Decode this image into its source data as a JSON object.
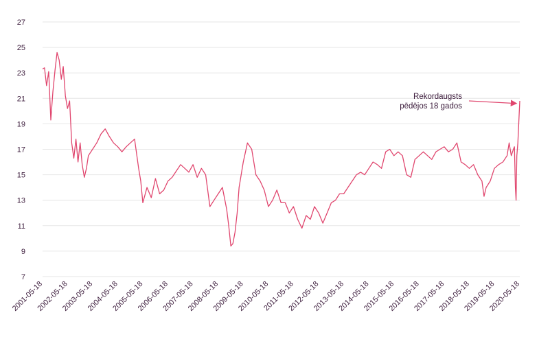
{
  "chart_data": {
    "type": "line",
    "title": "",
    "xlabel": "",
    "ylabel": "",
    "ylim": [
      7,
      27
    ],
    "yticks": [
      7,
      9,
      11,
      13,
      15,
      17,
      19,
      21,
      23,
      25,
      27
    ],
    "grid": "horizontal",
    "line_color": "#e0466e",
    "x_tick_labels": [
      "2001-05-18",
      "2002-05-18",
      "2003-05-18",
      "2004-05-18",
      "2005-05-18",
      "2006-05-18",
      "2007-05-18",
      "2008-05-18",
      "2009-05-18",
      "2010-05-18",
      "2011-05-18",
      "2012-05-18",
      "2013-05-18",
      "2014-05-18",
      "2015-05-18",
      "2016-05-18",
      "2017-05-18",
      "2018-05-18",
      "2019-05-18",
      "2020-05-18"
    ],
    "x_domain": [
      "2001-05-18",
      "2020-05-18"
    ],
    "series": [
      {
        "x": [
          "2001-05-18",
          "2001-06-15",
          "2001-07-15",
          "2001-08-15",
          "2001-09-15",
          "2001-10-15",
          "2001-11-15",
          "2001-12-15",
          "2002-01-15",
          "2002-02-15",
          "2002-03-15",
          "2002-04-15",
          "2002-05-15",
          "2002-06-15",
          "2002-07-15",
          "2002-08-15",
          "2002-09-15",
          "2002-10-15",
          "2002-11-15",
          "2002-12-15",
          "2003-01-15",
          "2003-02-15",
          "2003-03-15",
          "2003-05-15",
          "2003-07-15",
          "2003-09-15",
          "2003-11-15",
          "2004-01-15",
          "2004-03-15",
          "2004-05-15",
          "2004-07-15",
          "2004-09-15",
          "2004-11-15",
          "2005-01-15",
          "2005-03-15",
          "2005-04-15",
          "2005-05-15",
          "2005-07-15",
          "2005-09-15",
          "2005-11-15",
          "2006-01-15",
          "2006-03-15",
          "2006-05-15",
          "2006-07-15",
          "2006-09-15",
          "2006-11-15",
          "2007-01-15",
          "2007-03-15",
          "2007-05-15",
          "2007-07-15",
          "2007-09-15",
          "2007-11-15",
          "2008-01-15",
          "2008-03-15",
          "2008-05-15",
          "2008-07-15",
          "2008-09-15",
          "2008-10-15",
          "2008-11-15",
          "2008-12-15",
          "2009-01-15",
          "2009-02-15",
          "2009-03-15",
          "2009-05-15",
          "2009-07-15",
          "2009-09-15",
          "2009-11-15",
          "2010-01-15",
          "2010-03-15",
          "2010-05-15",
          "2010-07-15",
          "2010-09-15",
          "2010-11-15",
          "2011-01-15",
          "2011-03-15",
          "2011-05-15",
          "2011-07-15",
          "2011-09-15",
          "2011-11-15",
          "2012-01-15",
          "2012-03-15",
          "2012-05-15",
          "2012-07-15",
          "2012-09-15",
          "2012-11-15",
          "2013-01-15",
          "2013-03-15",
          "2013-05-15",
          "2013-07-15",
          "2013-09-15",
          "2013-11-15",
          "2014-01-15",
          "2014-03-15",
          "2014-05-15",
          "2014-07-15",
          "2014-09-15",
          "2014-11-15",
          "2015-01-15",
          "2015-03-15",
          "2015-05-15",
          "2015-07-15",
          "2015-09-15",
          "2015-11-15",
          "2016-01-15",
          "2016-03-15",
          "2016-05-15",
          "2016-07-15",
          "2016-09-15",
          "2016-11-15",
          "2017-01-15",
          "2017-03-15",
          "2017-05-15",
          "2017-07-15",
          "2017-09-15",
          "2017-11-15",
          "2018-01-15",
          "2018-03-15",
          "2018-05-15",
          "2018-07-15",
          "2018-09-15",
          "2018-11-15",
          "2018-12-15",
          "2019-01-15",
          "2019-03-15",
          "2019-05-15",
          "2019-07-15",
          "2019-09-15",
          "2019-11-15",
          "2019-12-15",
          "2020-01-15",
          "2020-02-15",
          "2020-03-01",
          "2020-03-15",
          "2020-03-25",
          "2020-04-05",
          "2020-04-20",
          "2020-05-05",
          "2020-05-18"
        ],
        "y": [
          23.3,
          23.4,
          22.0,
          23.1,
          19.3,
          21.5,
          23.2,
          24.6,
          24.0,
          22.5,
          23.5,
          21.2,
          20.2,
          20.8,
          17.5,
          16.3,
          17.8,
          16.0,
          17.5,
          15.8,
          14.8,
          15.5,
          16.5,
          17.0,
          17.5,
          18.2,
          18.6,
          18.0,
          17.5,
          17.2,
          16.8,
          17.2,
          17.5,
          17.8,
          15.5,
          14.5,
          12.8,
          14.0,
          13.2,
          14.7,
          13.5,
          13.8,
          14.5,
          14.8,
          15.3,
          15.8,
          15.5,
          15.2,
          15.8,
          14.8,
          15.5,
          15.0,
          12.5,
          13.0,
          13.5,
          14.0,
          12.3,
          11.0,
          9.4,
          9.6,
          10.5,
          12.0,
          14.0,
          16.0,
          17.5,
          17.0,
          15.0,
          14.5,
          13.8,
          12.5,
          13.0,
          13.8,
          12.8,
          12.8,
          12.0,
          12.5,
          11.5,
          10.8,
          11.8,
          11.5,
          12.5,
          12.0,
          11.2,
          12.0,
          12.8,
          13.0,
          13.5,
          13.5,
          14.0,
          14.5,
          15.0,
          15.2,
          15.0,
          15.5,
          16.0,
          15.8,
          15.5,
          16.8,
          17.0,
          16.5,
          16.8,
          16.5,
          15.0,
          14.8,
          16.2,
          16.5,
          16.8,
          16.5,
          16.2,
          16.8,
          17.0,
          17.2,
          16.8,
          17.0,
          17.5,
          16.0,
          15.8,
          15.5,
          15.8,
          15.0,
          14.5,
          13.3,
          14.0,
          14.5,
          15.5,
          15.8,
          16.0,
          16.5,
          17.5,
          16.5,
          17.0,
          17.2,
          14.0,
          13.0,
          16.5,
          17.5,
          19.3,
          20.8
        ]
      }
    ],
    "annotations": [
      {
        "lines": [
          "Rekordaugsts",
          "pēdējos 18 gados"
        ],
        "target_x": "2020-05-10",
        "target_y": 20.6
      }
    ]
  }
}
